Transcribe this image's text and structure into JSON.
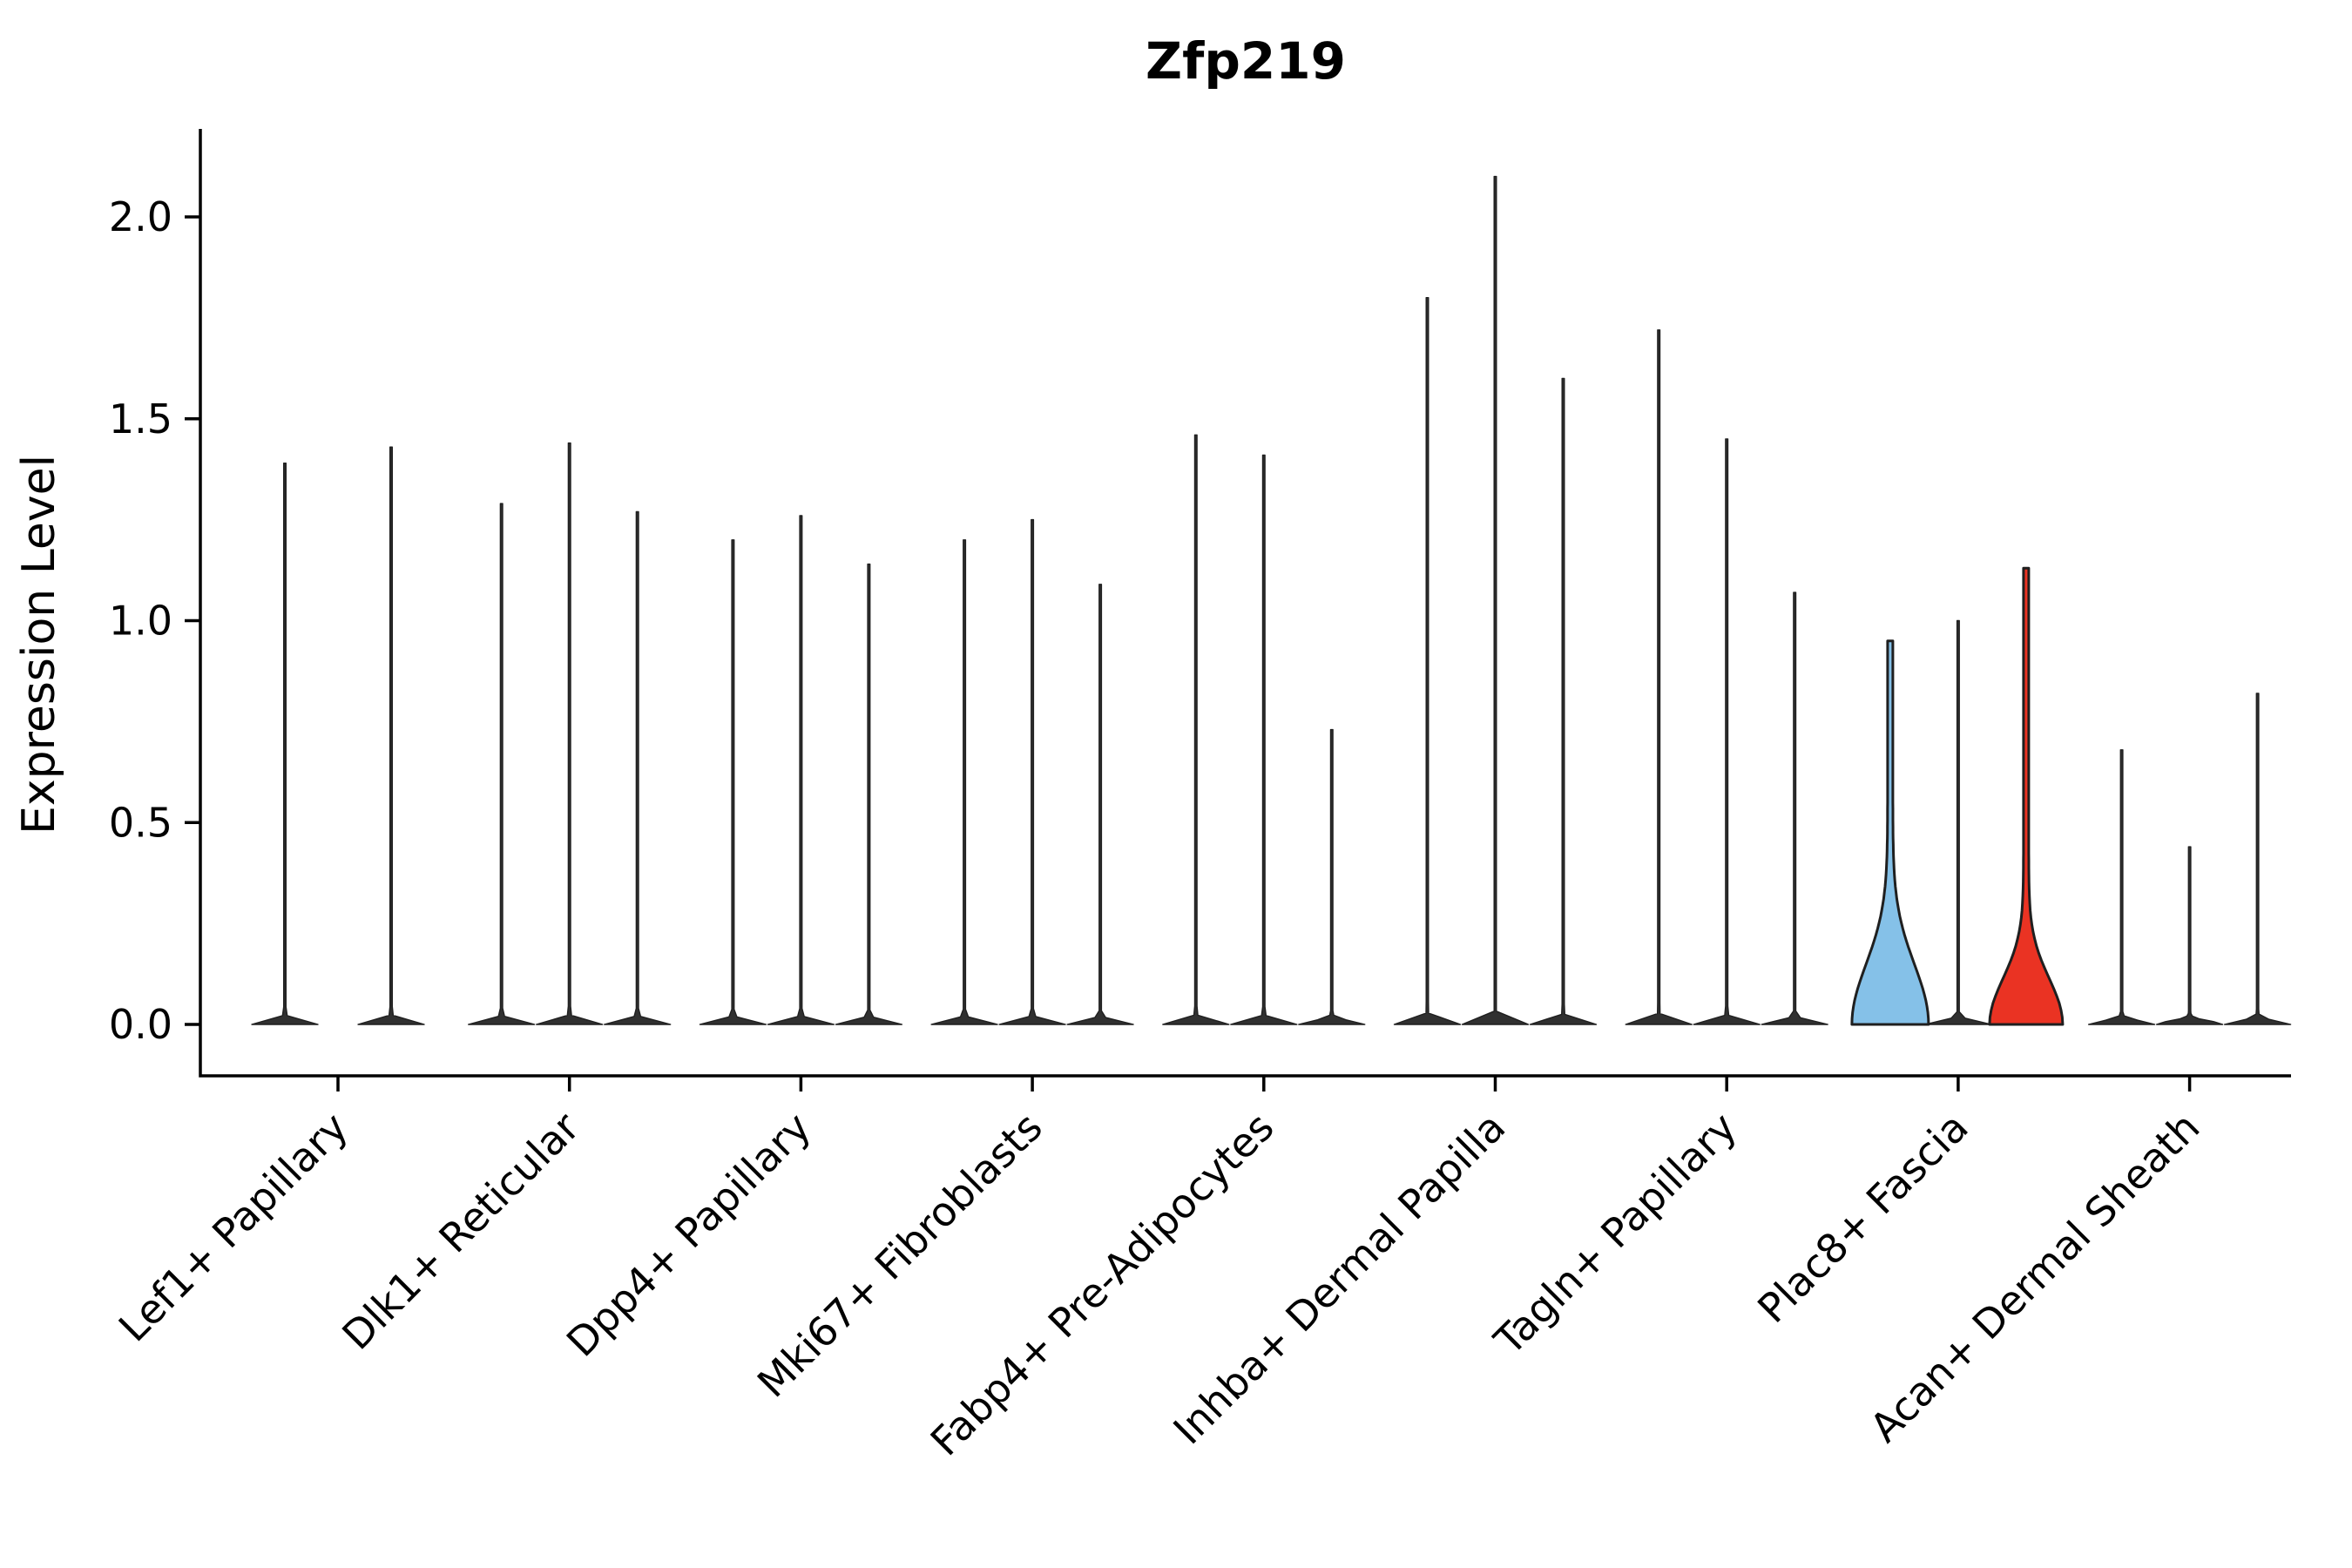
{
  "chart_data": {
    "type": "violin",
    "title": "Zfp219",
    "xlabel": "",
    "ylabel": "Expression Level",
    "ylim": [
      -0.07,
      2.22
    ],
    "yticks": [
      0.0,
      0.5,
      1.0,
      1.5,
      2.0
    ],
    "ytick_labels": [
      "0.0",
      "0.5",
      "1.0",
      "1.5",
      "2.0"
    ],
    "grid": false,
    "legend": "none",
    "categories": [
      "Lef1+ Papillary",
      "Dlk1+ Reticular",
      "Dpp4+ Papillary",
      "Mki67+ Fibroblasts",
      "Fabp4+ Pre-Adipocytes",
      "Inhba+ Dermal Papilla",
      "Tagln+ Papillary",
      "Plac8+ Fascia",
      "Acan+ Dermal Sheath"
    ],
    "groups": [
      {
        "category": "Lef1+ Papillary",
        "violins": [
          {
            "max": 1.39
          },
          {
            "max": 1.43
          }
        ]
      },
      {
        "category": "Dlk1+ Reticular",
        "violins": [
          {
            "max": 1.29
          },
          {
            "max": 1.44
          },
          {
            "max": 1.27
          }
        ]
      },
      {
        "category": "Dpp4+ Papillary",
        "violins": [
          {
            "max": 1.2
          },
          {
            "max": 1.26
          },
          {
            "max": 1.14
          }
        ]
      },
      {
        "category": "Mki67+ Fibroblasts",
        "violins": [
          {
            "max": 1.2
          },
          {
            "max": 1.25
          },
          {
            "max": 1.09
          }
        ]
      },
      {
        "category": "Fabp4+ Pre-Adipocytes",
        "violins": [
          {
            "max": 1.46
          },
          {
            "max": 1.41
          },
          {
            "max": 0.73
          }
        ]
      },
      {
        "category": "Inhba+ Dermal Papilla",
        "violins": [
          {
            "max": 1.8
          },
          {
            "max": 2.1
          },
          {
            "max": 1.6
          }
        ]
      },
      {
        "category": "Tagln+ Papillary",
        "violins": [
          {
            "max": 1.72
          },
          {
            "max": 1.45
          },
          {
            "max": 1.07
          }
        ]
      },
      {
        "category": "Plac8+ Fascia",
        "violins": [
          {
            "max": 0.95,
            "fill": "#85C1E8",
            "bulge": 0.21,
            "half_width": 44
          },
          {
            "max": 1.0
          },
          {
            "max": 1.13,
            "fill": "#EA3323",
            "bulge": 0.16,
            "half_width": 42
          }
        ]
      },
      {
        "category": "Acan+ Dermal Sheath",
        "violins": [
          {
            "max": 0.68
          },
          {
            "max": 0.44
          },
          {
            "max": 0.82
          }
        ]
      }
    ],
    "colors": {
      "axis": "#000000",
      "violin_stroke": "#1f1f1f",
      "violin_thin_fill": "#303030",
      "highlight_blue": "#85C1E8",
      "highlight_red": "#EA3323",
      "background": "#ffffff"
    },
    "defaults": {
      "bulge": 0.012,
      "half_width": 38,
      "stem_half_width": 1.3
    }
  }
}
